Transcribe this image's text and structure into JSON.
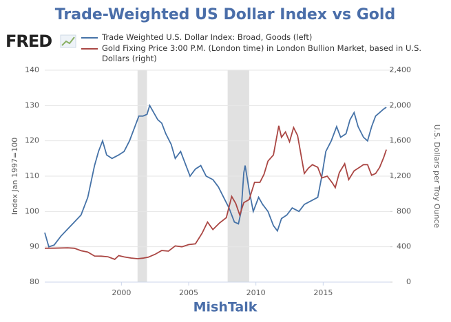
{
  "chart_data": {
    "type": "line",
    "title": "Trade-Weighted US Dollar Index vs Gold",
    "logo": "FRED",
    "watermark": "MishTalk",
    "ylabel": "Index Jan 1997=100",
    "y2label": "U.S. Dollars per Troy Ounce",
    "xlim": [
      1994.3,
      2020.0
    ],
    "xticks": [
      2000,
      2005,
      2010,
      2015
    ],
    "ylim": [
      80,
      140
    ],
    "yticks": [
      80,
      90,
      100,
      110,
      120,
      130,
      140
    ],
    "y2lim": [
      0,
      2400
    ],
    "y2ticks": [
      0,
      400,
      800,
      {
        "value": 1200,
        "label": "1,200"
      },
      {
        "value": 1600,
        "label": "1,600"
      },
      {
        "value": 2000,
        "label": "2,000"
      },
      {
        "value": 2400,
        "label": "2,400"
      }
    ],
    "grid": true,
    "recessions": [
      [
        2001.2,
        2001.9
      ],
      [
        2007.9,
        2009.5
      ]
    ],
    "series": [
      {
        "name": "Trade Weighted U.S. Dollar Index: Broad, Goods (left)",
        "color": "#4572a7",
        "axis": "y",
        "x": [
          1994.3,
          1994.6,
          1995.0,
          1995.5,
          1996.0,
          1996.5,
          1997.0,
          1997.5,
          1998.0,
          1998.3,
          1998.6,
          1998.9,
          1999.3,
          1999.8,
          2000.2,
          2000.6,
          2001.0,
          2001.3,
          2001.6,
          2001.9,
          2002.1,
          2002.4,
          2002.7,
          2003.0,
          2003.3,
          2003.7,
          2004.0,
          2004.4,
          2004.8,
          2005.1,
          2005.5,
          2005.9,
          2006.3,
          2006.8,
          2007.2,
          2007.6,
          2008.0,
          2008.4,
          2008.7,
          2008.9,
          2009.1,
          2009.2,
          2009.5,
          2009.8,
          2010.2,
          2010.5,
          2010.9,
          2011.3,
          2011.6,
          2011.9,
          2012.3,
          2012.7,
          2013.2,
          2013.6,
          2014.1,
          2014.6,
          2014.9,
          2015.2,
          2015.6,
          2016.0,
          2016.3,
          2016.7,
          2017.0,
          2017.3,
          2017.6,
          2018.0,
          2018.3,
          2018.6,
          2018.9,
          2019.2,
          2019.5,
          2019.7
        ],
        "values": [
          94,
          90,
          90.5,
          93,
          95,
          97,
          99,
          104,
          113,
          117,
          120,
          116,
          115,
          116,
          117,
          120,
          124,
          127,
          127,
          127.5,
          130,
          128,
          126,
          125,
          122,
          119,
          115,
          117,
          113,
          110,
          112,
          113,
          110,
          109,
          107,
          104,
          101,
          97,
          96.5,
          100,
          111,
          113,
          106,
          100,
          104,
          102,
          100,
          96,
          94.5,
          98,
          99,
          101,
          100,
          102,
          103,
          104,
          110,
          117,
          120,
          124,
          121,
          122,
          126,
          128,
          124,
          121,
          120,
          124,
          127,
          128,
          129,
          129.5
        ]
      },
      {
        "name": "Gold Fixing Price 3:00 P.M. (London time) in London Bullion Market, based in U.S. Dollars (right)",
        "color": "#aa4643",
        "axis": "y2",
        "x": [
          1994.3,
          1995.0,
          1996.0,
          1996.5,
          1997.0,
          1997.5,
          1998.0,
          1998.5,
          1999.0,
          1999.5,
          1999.8,
          2000.2,
          2000.7,
          2001.2,
          2001.6,
          2002.0,
          2002.5,
          2003.0,
          2003.5,
          2004.0,
          2004.5,
          2005.0,
          2005.5,
          2006.0,
          2006.4,
          2006.8,
          2007.3,
          2007.8,
          2008.2,
          2008.5,
          2008.8,
          2009.1,
          2009.5,
          2009.9,
          2010.3,
          2010.6,
          2010.9,
          2011.3,
          2011.7,
          2011.9,
          2012.2,
          2012.5,
          2012.8,
          2013.1,
          2013.4,
          2013.6,
          2013.9,
          2014.2,
          2014.6,
          2014.9,
          2015.3,
          2015.7,
          2015.9,
          2016.2,
          2016.6,
          2016.9,
          2017.3,
          2017.7,
          2018.0,
          2018.3,
          2018.6,
          2018.9,
          2019.2,
          2019.5,
          2019.7
        ],
        "values": [
          383,
          384,
          388,
          383,
          355,
          340,
          295,
          294,
          287,
          258,
          300,
          285,
          273,
          265,
          271,
          282,
          315,
          358,
          351,
          410,
          400,
          425,
          433,
          553,
          680,
          595,
          670,
          730,
          970,
          890,
          760,
          900,
          935,
          1130,
          1130,
          1220,
          1370,
          1440,
          1770,
          1640,
          1700,
          1590,
          1750,
          1660,
          1400,
          1230,
          1290,
          1330,
          1300,
          1180,
          1200,
          1120,
          1070,
          1240,
          1340,
          1160,
          1260,
          1300,
          1330,
          1330,
          1210,
          1230,
          1300,
          1410,
          1500
        ]
      }
    ]
  }
}
